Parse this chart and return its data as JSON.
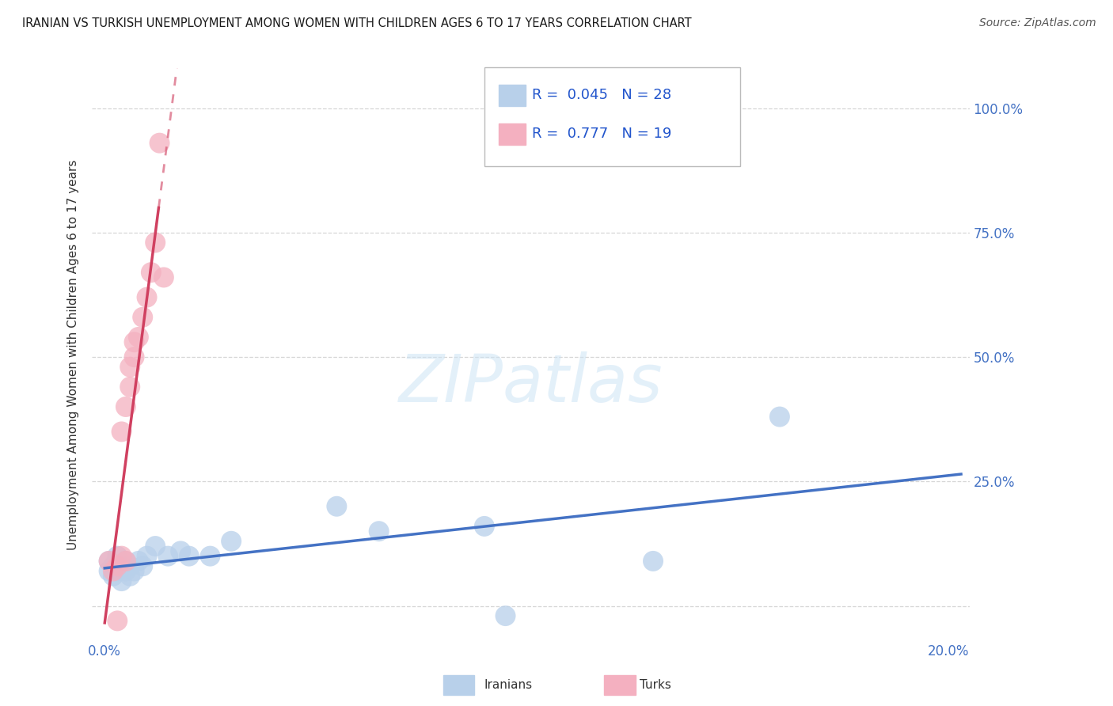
{
  "title": "IRANIAN VS TURKISH UNEMPLOYMENT AMONG WOMEN WITH CHILDREN AGES 6 TO 17 YEARS CORRELATION CHART",
  "source": "Source: ZipAtlas.com",
  "ylabel": "Unemployment Among Women with Children Ages 6 to 17 years",
  "xlim": [
    -0.003,
    0.205
  ],
  "ylim": [
    -0.07,
    1.08
  ],
  "xtick_vals": [
    0.0,
    0.2
  ],
  "xticklabels": [
    "0.0%",
    "20.0%"
  ],
  "ytick_vals": [
    0.0,
    0.25,
    0.5,
    0.75,
    1.0
  ],
  "yticklabels_right": [
    "",
    "25.0%",
    "50.0%",
    "75.0%",
    "100.0%"
  ],
  "legend_items": [
    {
      "label": "Iranians",
      "color": "#b8d0ea",
      "R": 0.045,
      "N": 28
    },
    {
      "label": "Turks",
      "color": "#f4b0c0",
      "R": 0.777,
      "N": 19
    }
  ],
  "iranian_x": [
    0.001,
    0.001,
    0.002,
    0.002,
    0.003,
    0.003,
    0.004,
    0.004,
    0.005,
    0.005,
    0.006,
    0.006,
    0.007,
    0.008,
    0.009,
    0.01,
    0.012,
    0.015,
    0.018,
    0.02,
    0.025,
    0.03,
    0.055,
    0.065,
    0.09,
    0.095,
    0.13,
    0.16
  ],
  "iranian_y": [
    0.09,
    0.07,
    0.08,
    0.06,
    0.1,
    0.07,
    0.08,
    0.05,
    0.09,
    0.07,
    0.08,
    0.06,
    0.07,
    0.09,
    0.08,
    0.1,
    0.12,
    0.1,
    0.11,
    0.1,
    0.1,
    0.13,
    0.2,
    0.15,
    0.16,
    -0.02,
    0.09,
    0.38
  ],
  "turkish_x": [
    0.001,
    0.002,
    0.003,
    0.003,
    0.004,
    0.004,
    0.005,
    0.005,
    0.006,
    0.006,
    0.007,
    0.007,
    0.008,
    0.009,
    0.01,
    0.011,
    0.012,
    0.013,
    0.014
  ],
  "turkish_y": [
    0.09,
    0.07,
    0.08,
    -0.03,
    0.35,
    0.1,
    0.4,
    0.09,
    0.44,
    0.48,
    0.5,
    0.53,
    0.54,
    0.58,
    0.62,
    0.67,
    0.73,
    0.93,
    0.66
  ],
  "watermark_text": "ZIPatlas",
  "title_color": "#1a1a1a",
  "source_color": "#555555",
  "axis_label_color": "#333333",
  "tick_color": "#4472c4",
  "grid_color": "#cccccc",
  "iranian_dot_color": "#b8d0ea",
  "turkish_dot_color": "#f4b0c0",
  "iranian_line_color": "#4472c4",
  "turkish_line_color": "#d04060",
  "background_color": "#ffffff"
}
